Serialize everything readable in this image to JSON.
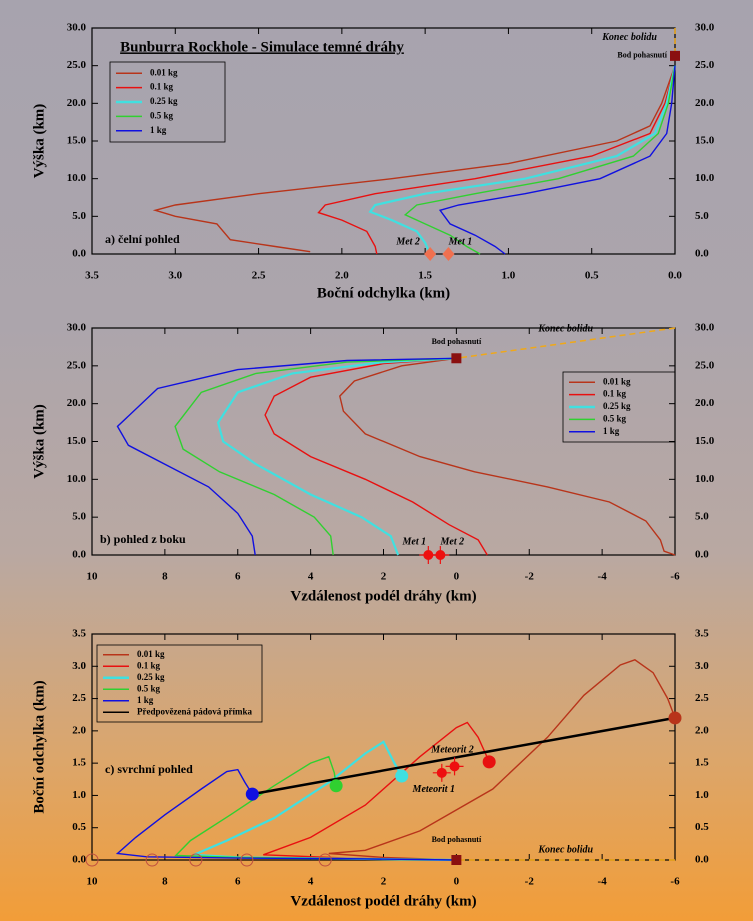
{
  "chart_data": [
    {
      "type": "line",
      "title": "Bunburra Rockhole - Simulace temné dráhy",
      "panel_label": "a) čelní pohled",
      "x_label": "Boční odchylka (km)",
      "y_label": "Výška (km)",
      "xlim": [
        3.5,
        0
      ],
      "ylim": [
        0,
        30
      ],
      "xticks": [
        3.5,
        {
          "value": 3,
          "label": "3.0"
        },
        2.5,
        {
          "value": 2,
          "label": "2.0"
        },
        1.5,
        {
          "value": 1,
          "label": "1.0"
        },
        0.5,
        {
          "value": 0,
          "label": "0.0"
        }
      ],
      "yticks": [
        {
          "value": 0,
          "label": "0.0"
        },
        {
          "value": 5,
          "label": "5.0"
        },
        {
          "value": 10,
          "label": "10.0"
        },
        {
          "value": 15,
          "label": "15.0"
        },
        {
          "value": 20,
          "label": "20.0"
        },
        {
          "value": 25,
          "label": "25.0"
        },
        {
          "value": 30,
          "label": "30.0"
        }
      ],
      "legend": "upper left",
      "series": [
        {
          "name": "0.01 kg",
          "color": "#b8341a",
          "x": [
            0,
            0.08,
            0.15,
            0.35,
            1.0,
            1.7,
            2.5,
            3.0,
            3.12,
            3.0,
            2.75,
            2.67,
            2.4,
            2.19
          ],
          "values": [
            25,
            20,
            17,
            15,
            12,
            10,
            8,
            6.5,
            5.8,
            5,
            4,
            1.9,
            1,
            0.3
          ]
        },
        {
          "name": "0.1  kg",
          "color": "#e81010",
          "x": [
            0,
            0.06,
            0.15,
            0.5,
            1.2,
            1.8,
            2.1,
            2.14,
            2.0,
            1.85,
            1.8,
            1.79
          ],
          "values": [
            25,
            20,
            16,
            13,
            10,
            8,
            6.5,
            5.5,
            4.5,
            3,
            1,
            0
          ]
        },
        {
          "name": "0.25 kg",
          "color": "#40e0e0",
          "x": [
            0,
            0.05,
            0.12,
            0.35,
            0.9,
            1.5,
            1.8,
            1.83,
            1.7,
            1.55,
            1.5,
            1.47
          ],
          "values": [
            25,
            20,
            16,
            13,
            10,
            8,
            6.5,
            5.6,
            4.5,
            3,
            1.5,
            0
          ]
        },
        {
          "name": "0.5 kg",
          "color": "#30d030",
          "x": [
            0,
            0.04,
            0.1,
            0.25,
            0.7,
            1.2,
            1.55,
            1.62,
            1.5,
            1.35,
            1.25,
            1.17
          ],
          "values": [
            25,
            20,
            16,
            13,
            10,
            8,
            6.5,
            5.2,
            4,
            2.5,
            1,
            0
          ]
        },
        {
          "name": "1 kg",
          "color": "#1010e0",
          "x": [
            0,
            0.02,
            0.05,
            0.15,
            0.45,
            0.9,
            1.3,
            1.41,
            1.35,
            1.2,
            1.08,
            1.02
          ],
          "values": [
            25,
            20,
            16,
            13,
            10,
            8,
            6.5,
            5.8,
            4,
            2.5,
            1,
            0
          ]
        }
      ],
      "markers": [
        {
          "label": "Met 2",
          "x": 1.47,
          "y": 0,
          "color": "#f07050"
        },
        {
          "label": "Met 1",
          "x": 1.36,
          "y": 0,
          "color": "#f07050"
        }
      ],
      "burnout_point": {
        "label": "Bod pohasnutí",
        "x": 0,
        "y": 26.3
      },
      "fireball_end": {
        "label": "Konec bolidu",
        "x": 0,
        "y": 30
      }
    },
    {
      "type": "line",
      "panel_label": "b) pohled z boku",
      "x_label": "Vzdálenost podél dráhy (km)",
      "y_label": "Výška (km)",
      "xlim": [
        10,
        -6
      ],
      "ylim": [
        0,
        30
      ],
      "xticks": [
        10,
        8,
        6,
        4,
        2,
        0,
        -2,
        -4,
        -6
      ],
      "yticks": [
        {
          "value": 0,
          "label": "0.0"
        },
        {
          "value": 5,
          "label": "5.0"
        },
        {
          "value": 10,
          "label": "10.0"
        },
        {
          "value": 15,
          "label": "15.0"
        },
        {
          "value": 20,
          "label": "20.0"
        },
        {
          "value": 25,
          "label": "25.0"
        },
        {
          "value": 30,
          "label": "30.0"
        }
      ],
      "legend": "upper right",
      "series": [
        {
          "name": "0.01 kg",
          "color": "#b8341a",
          "x": [
            0,
            1.5,
            2.8,
            3.2,
            3.1,
            2.5,
            1.0,
            -0.5,
            -2.5,
            -4.2,
            -5.2,
            -5.6,
            -5.7,
            -6
          ],
          "values": [
            26,
            25,
            23,
            21,
            19,
            16,
            13,
            11,
            9,
            7,
            4.5,
            2,
            0.5,
            0
          ]
        },
        {
          "name": "0.1 kg",
          "color": "#e81010",
          "x": [
            0,
            2,
            4,
            5,
            5.25,
            5.0,
            4,
            2.5,
            1.2,
            0.2,
            -0.6,
            -0.85
          ],
          "values": [
            26,
            25.3,
            23.5,
            21,
            18.5,
            16,
            13,
            10,
            7,
            4,
            2,
            0
          ]
        },
        {
          "name": "0.25 kg",
          "color": "#40e0e0",
          "x": [
            0,
            2,
            4.5,
            6,
            6.54,
            6.4,
            5.5,
            4,
            2.6,
            1.8,
            1.6
          ],
          "values": [
            26,
            25.5,
            24,
            21.5,
            17.5,
            15,
            12,
            8,
            5,
            2.5,
            0
          ]
        },
        {
          "name": "0.5 kg",
          "color": "#30d030",
          "x": [
            0,
            3,
            5.5,
            7,
            7.72,
            7.5,
            6.5,
            5,
            3.9,
            3.45,
            3.38
          ],
          "values": [
            26,
            25.5,
            24,
            21.5,
            17,
            14,
            11,
            8,
            5,
            2.5,
            0
          ]
        },
        {
          "name": "1 kg",
          "color": "#1010e0",
          "x": [
            0,
            3,
            6,
            8.2,
            9.3,
            9.0,
            8,
            6.8,
            6,
            5.6,
            5.52
          ],
          "values": [
            26,
            25.7,
            24.5,
            22,
            17,
            14.5,
            12,
            9,
            5.5,
            2.5,
            0
          ]
        }
      ],
      "markers": [
        {
          "label": "Met 1",
          "x": 0.77,
          "y": 0,
          "color": "#ee1010"
        },
        {
          "label": "Met 2",
          "x": 0.44,
          "y": 0,
          "color": "#ee1010"
        }
      ],
      "burnout_point": {
        "label": "Bod pohasnutí",
        "x": 0,
        "y": 26
      },
      "fireball_end": {
        "label": "Konec bolidu",
        "x": -6,
        "y": 30
      }
    },
    {
      "type": "line",
      "panel_label": "c) svrchní pohled",
      "x_label": "Vzdálenost podél dráhy (km)",
      "y_label": "Boční odchylka (km)",
      "xlim": [
        10,
        -6
      ],
      "ylim": [
        0,
        3.5
      ],
      "xticks": [
        10,
        8,
        6,
        4,
        2,
        0,
        -2,
        -4,
        -6
      ],
      "yticks": [
        {
          "value": 0,
          "label": "0.0"
        },
        0.5,
        {
          "value": 1,
          "label": "1.0"
        },
        1.5,
        {
          "value": 2,
          "label": "2.0"
        },
        2.5,
        {
          "value": 3,
          "label": "3.0"
        },
        3.5
      ],
      "legend": "upper left",
      "end_markers": true,
      "series": [
        {
          "name": "0.01 kg",
          "color": "#b8341a",
          "x": [
            0,
            2,
            3.5,
            2.5,
            1,
            -1,
            -2.5,
            -3.5,
            -4.5,
            -4.9,
            -5.4,
            -5.8,
            -6
          ],
          "values": [
            0,
            0.04,
            0.1,
            0.15,
            0.45,
            1.1,
            1.9,
            2.55,
            3.02,
            3.1,
            2.9,
            2.5,
            2.2
          ]
        },
        {
          "name": "0.1  kg",
          "color": "#e81010",
          "x": [
            0,
            3,
            5.3,
            4,
            2.5,
            1,
            0,
            -0.3,
            -0.6,
            -0.9
          ],
          "values": [
            0,
            0.03,
            0.08,
            0.35,
            0.85,
            1.6,
            2.05,
            2.13,
            1.9,
            1.52
          ]
        },
        {
          "name": "0.25 kg",
          "color": "#40e0e0",
          "x": [
            0,
            3,
            6,
            7.2,
            6.3,
            5,
            3.5,
            2.5,
            2.0,
            1.7,
            1.5
          ],
          "values": [
            0,
            0.02,
            0.04,
            0.08,
            0.3,
            0.65,
            1.2,
            1.65,
            1.83,
            1.5,
            1.3
          ]
        },
        {
          "name": "0.5 kg",
          "color": "#30d030",
          "x": [
            0,
            3,
            6,
            7.7,
            7.3,
            6.2,
            5,
            4,
            3.5,
            3.35,
            3.3
          ],
          "values": [
            0,
            0.02,
            0.04,
            0.07,
            0.3,
            0.7,
            1.15,
            1.5,
            1.6,
            1.35,
            1.15
          ]
        },
        {
          "name": "1 kg",
          "color": "#1010e0",
          "x": [
            0,
            3,
            6,
            8.5,
            9.3,
            8.8,
            8,
            7,
            6.3,
            6.0,
            5.8,
            5.6
          ],
          "values": [
            0,
            0.02,
            0.03,
            0.05,
            0.1,
            0.35,
            0.7,
            1.1,
            1.37,
            1.4,
            1.2,
            1.02
          ]
        },
        {
          "name": "Předpovězená pádová přímka",
          "color": "#000000",
          "x": [
            5.6,
            -6
          ],
          "values": [
            1.02,
            2.2
          ]
        }
      ],
      "open_circles": {
        "x": [
          10,
          8.35,
          7.15,
          5.75,
          3.6
        ],
        "values": [
          0,
          0,
          0,
          0,
          0
        ]
      },
      "markers": [
        {
          "label": "Meteorit 2",
          "x": 0.05,
          "y": 1.45,
          "color": "#ee1010"
        },
        {
          "label": "Meteorit 1",
          "x": 0.4,
          "y": 1.35,
          "color": "#ee1010"
        }
      ],
      "burnout_point": {
        "label": "Bod pohasnutí",
        "x": 0,
        "y": 0
      },
      "fireball_end": {
        "label": "Konec bolidu",
        "x": -6,
        "y": 0
      }
    }
  ]
}
